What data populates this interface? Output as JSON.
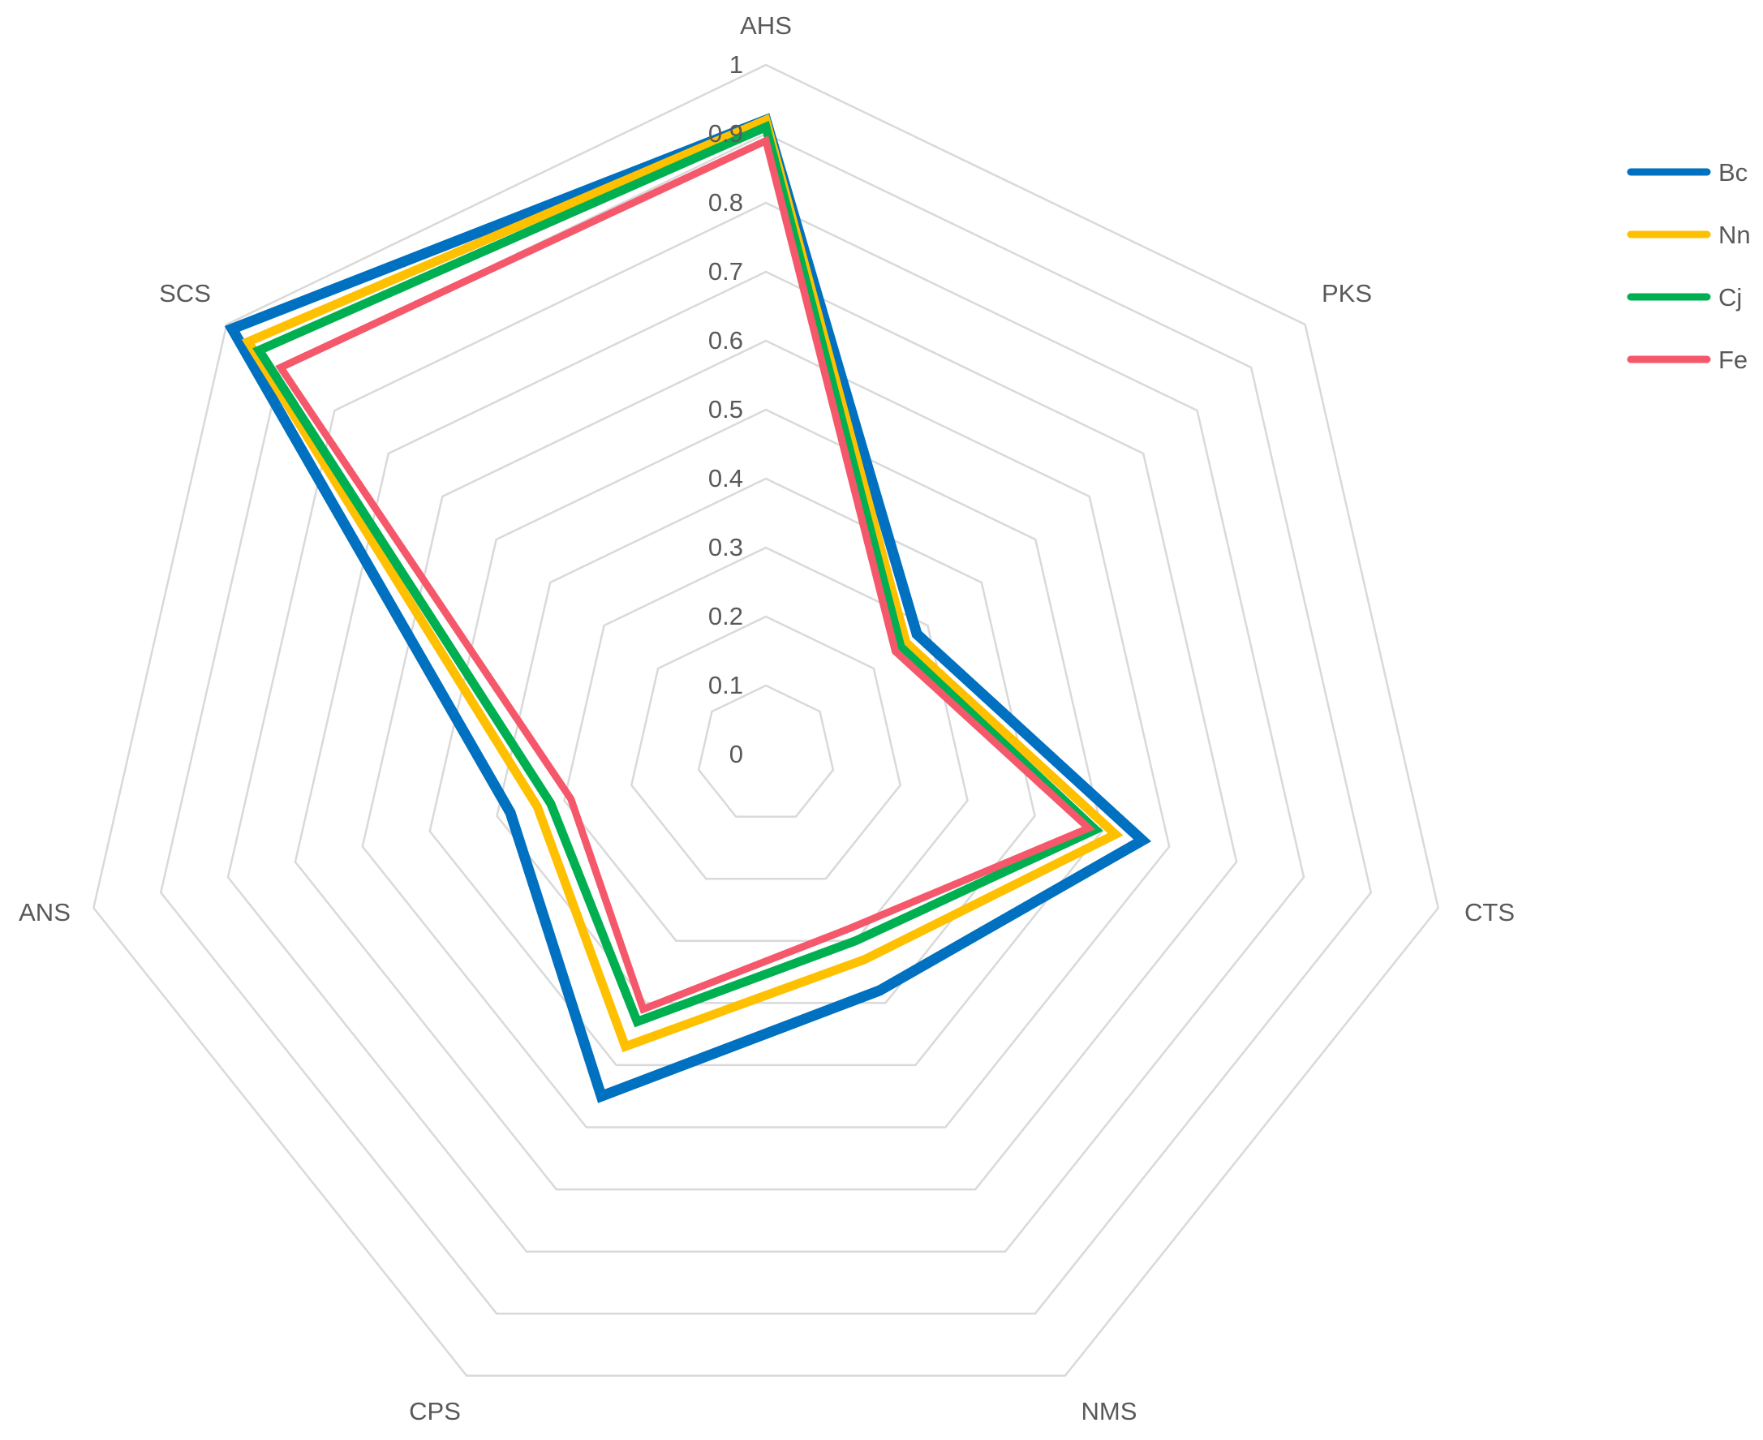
{
  "chart_data": {
    "type": "radar",
    "axes": [
      "AHS",
      "PKS",
      "CTS",
      "NMS",
      "CPS",
      "ANS",
      "SCS"
    ],
    "ticks": [
      "0",
      "0.1",
      "0.2",
      "0.3",
      "0.4",
      "0.5",
      "0.6",
      "0.7",
      "0.8",
      "0.9",
      "1"
    ],
    "rlim": [
      0,
      1
    ],
    "grid": true,
    "legend_position": "right",
    "series": [
      {
        "name": "Bc",
        "color": "#0070C0",
        "values": [
          0.92,
          0.28,
          0.56,
          0.38,
          0.55,
          0.38,
          0.99
        ]
      },
      {
        "name": "Nn",
        "color": "#FFC000",
        "values": [
          0.92,
          0.26,
          0.52,
          0.33,
          0.47,
          0.34,
          0.96
        ]
      },
      {
        "name": "Cj",
        "color": "#00B050",
        "values": [
          0.91,
          0.25,
          0.49,
          0.3,
          0.43,
          0.32,
          0.94
        ]
      },
      {
        "name": "Fe",
        "color": "#F4586A",
        "values": [
          0.89,
          0.24,
          0.48,
          0.28,
          0.41,
          0.29,
          0.9
        ]
      }
    ]
  }
}
